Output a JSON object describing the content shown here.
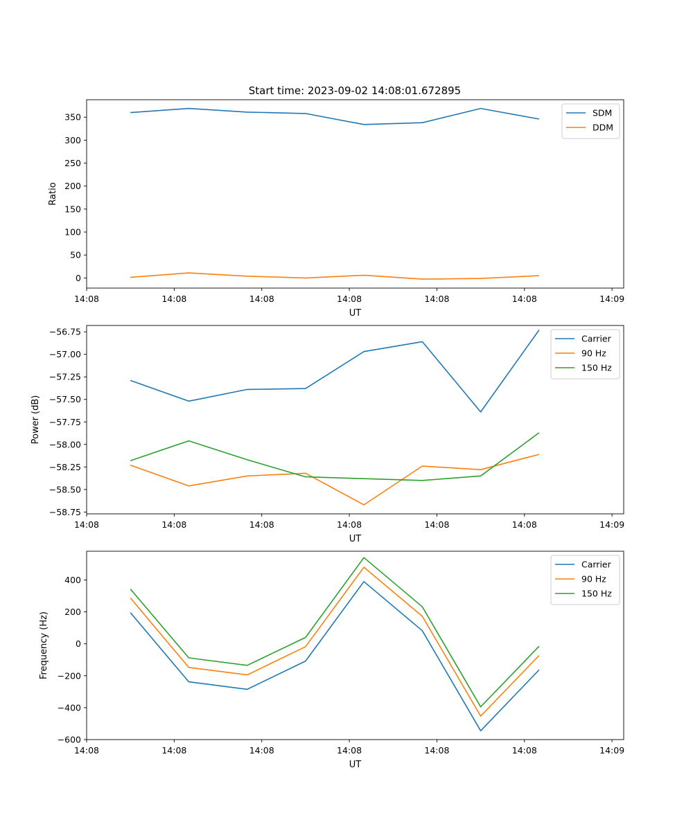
{
  "figure": {
    "title": "Start time: 2023-09-02 14:08:01.672895"
  },
  "colors": {
    "blue": "#1f77b4",
    "orange": "#ff7f0e",
    "green": "#2ca02c"
  },
  "chart_data": [
    {
      "type": "line",
      "title": "Start time: 2023-09-02 14:08:01.672895",
      "xlabel": "UT",
      "ylabel": "Ratio",
      "x": [
        0,
        1,
        2,
        3,
        4,
        5,
        6,
        7
      ],
      "xlim": [
        -0.75,
        8.45
      ],
      "xticks": [
        -0.75,
        0.75,
        2.25,
        3.75,
        5.25,
        6.75,
        8.25
      ],
      "xtick_labels": [
        "14:08",
        "14:08",
        "14:08",
        "14:08",
        "14:08",
        "14:08",
        "14:09"
      ],
      "ylim": [
        -22,
        388
      ],
      "yticks": [
        0,
        50,
        100,
        150,
        200,
        250,
        300,
        350
      ],
      "ytick_labels": [
        "0",
        "50",
        "100",
        "150",
        "200",
        "250",
        "300",
        "350"
      ],
      "legend": "top-right",
      "series": [
        {
          "name": "SDM",
          "color": "blue",
          "values": [
            360,
            369,
            361,
            358,
            334,
            338,
            369,
            346
          ]
        },
        {
          "name": "DDM",
          "color": "orange",
          "values": [
            1.5,
            11,
            4,
            0,
            6,
            -2.5,
            -1,
            5
          ]
        }
      ]
    },
    {
      "type": "line",
      "title": "",
      "xlabel": "UT",
      "ylabel": "Power (dB)",
      "x": [
        0,
        1,
        2,
        3,
        4,
        5,
        6,
        7
      ],
      "xlim": [
        -0.75,
        8.45
      ],
      "xticks": [
        -0.75,
        0.75,
        2.25,
        3.75,
        5.25,
        6.75,
        8.25
      ],
      "xtick_labels": [
        "14:08",
        "14:08",
        "14:08",
        "14:08",
        "14:08",
        "14:08",
        "14:09"
      ],
      "ylim": [
        -58.77,
        -56.68
      ],
      "yticks": [
        -58.75,
        -58.5,
        -58.25,
        -58.0,
        -57.75,
        -57.5,
        -57.25,
        -57.0,
        -56.75
      ],
      "ytick_labels": [
        "−58.75",
        "−58.50",
        "−58.25",
        "−58.00",
        "−57.75",
        "−57.50",
        "−57.25",
        "−57.00",
        "−56.75"
      ],
      "legend": "top-right",
      "series": [
        {
          "name": "Carrier",
          "color": "blue",
          "values": [
            -57.29,
            -57.52,
            -57.39,
            -57.38,
            -56.97,
            -56.86,
            -57.64,
            -56.73
          ]
        },
        {
          "name": "90 Hz",
          "color": "orange",
          "values": [
            -58.23,
            -58.46,
            -58.35,
            -58.32,
            -58.67,
            -58.24,
            -58.28,
            -58.11
          ]
        },
        {
          "name": "150 Hz",
          "color": "green",
          "values": [
            -58.18,
            -57.96,
            -58.17,
            -58.36,
            -58.38,
            -58.4,
            -58.35,
            -57.87
          ]
        }
      ]
    },
    {
      "type": "line",
      "title": "",
      "xlabel": "UT",
      "ylabel": "Frequency (Hz)",
      "x": [
        0,
        1,
        2,
        3,
        4,
        5,
        6,
        7
      ],
      "xlim": [
        -0.75,
        8.45
      ],
      "xticks": [
        -0.75,
        0.75,
        2.25,
        3.75,
        5.25,
        6.75,
        8.25
      ],
      "xtick_labels": [
        "14:08",
        "14:08",
        "14:08",
        "14:08",
        "14:08",
        "14:08",
        "14:09"
      ],
      "ylim": [
        -600,
        580
      ],
      "yticks": [
        -600,
        -400,
        -200,
        0,
        200,
        400
      ],
      "ytick_labels": [
        "−600",
        "−400",
        "−200",
        "0",
        "200",
        "400"
      ],
      "legend": "top-right",
      "series": [
        {
          "name": "Carrier",
          "color": "blue",
          "values": [
            195,
            -238,
            -285,
            -108,
            390,
            82,
            -545,
            -163
          ]
        },
        {
          "name": "90 Hz",
          "color": "orange",
          "values": [
            287,
            -148,
            -195,
            -18,
            480,
            172,
            -453,
            -73
          ]
        },
        {
          "name": "150 Hz",
          "color": "green",
          "values": [
            343,
            -88,
            -135,
            40,
            540,
            232,
            -395,
            -15
          ]
        }
      ]
    }
  ]
}
